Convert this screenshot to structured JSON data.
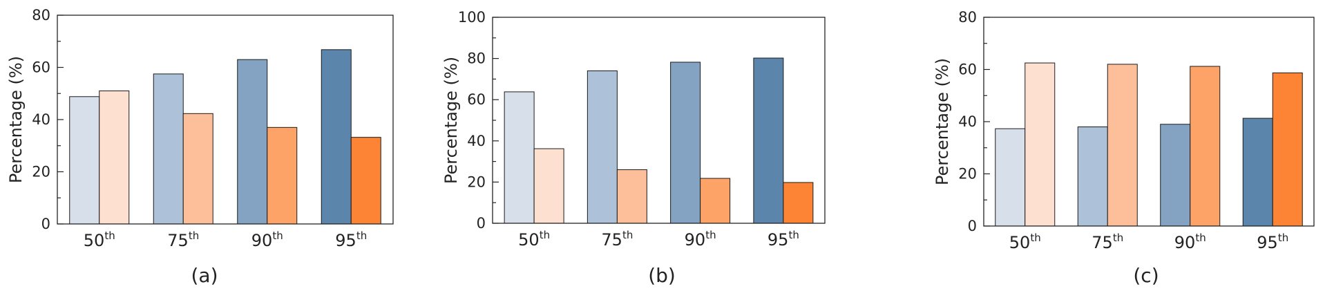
{
  "chart_data": [
    {
      "type": "bar",
      "caption": "(a)",
      "ylabel": "Percentage (%)",
      "ylim": [
        0,
        80
      ],
      "yticks": [
        0,
        20,
        40,
        60,
        80
      ],
      "categories": [
        {
          "base": "50",
          "sup": "th"
        },
        {
          "base": "75",
          "sup": "th"
        },
        {
          "base": "90",
          "sup": "th"
        },
        {
          "base": "95",
          "sup": "th"
        }
      ],
      "series": [
        {
          "values": [
            48.8,
            57.5,
            63.0,
            66.8
          ]
        },
        {
          "values": [
            51.0,
            42.3,
            37.0,
            33.2
          ]
        }
      ]
    },
    {
      "type": "bar",
      "caption": "(b)",
      "ylabel": "Percentage (%)",
      "ylim": [
        0,
        100
      ],
      "yticks": [
        0,
        20,
        40,
        60,
        80,
        100
      ],
      "categories": [
        {
          "base": "50",
          "sup": "th"
        },
        {
          "base": "75",
          "sup": "th"
        },
        {
          "base": "90",
          "sup": "th"
        },
        {
          "base": "95",
          "sup": "th"
        }
      ],
      "series": [
        {
          "values": [
            63.8,
            74.0,
            78.2,
            80.2
          ]
        },
        {
          "values": [
            36.2,
            26.0,
            21.8,
            19.8
          ]
        }
      ]
    },
    {
      "type": "bar",
      "caption": "(c)",
      "ylabel": "Percentage (%)",
      "ylim": [
        0,
        80
      ],
      "yticks": [
        0,
        20,
        40,
        60,
        80
      ],
      "categories": [
        {
          "base": "50",
          "sup": "th"
        },
        {
          "base": "75",
          "sup": "th"
        },
        {
          "base": "90",
          "sup": "th"
        },
        {
          "base": "95",
          "sup": "th"
        }
      ],
      "series": [
        {
          "values": [
            37.3,
            38.0,
            39.0,
            41.3
          ]
        },
        {
          "values": [
            62.5,
            62.0,
            61.2,
            58.7
          ]
        }
      ]
    }
  ],
  "colors": {
    "blue": [
      "#d7e0ea",
      "#adc1d8",
      "#84a3c2",
      "#5b85ab"
    ],
    "orange": [
      "#fde0cf",
      "#fdbf99",
      "#fea368",
      "#fe8435"
    ],
    "axis": "#222222"
  }
}
